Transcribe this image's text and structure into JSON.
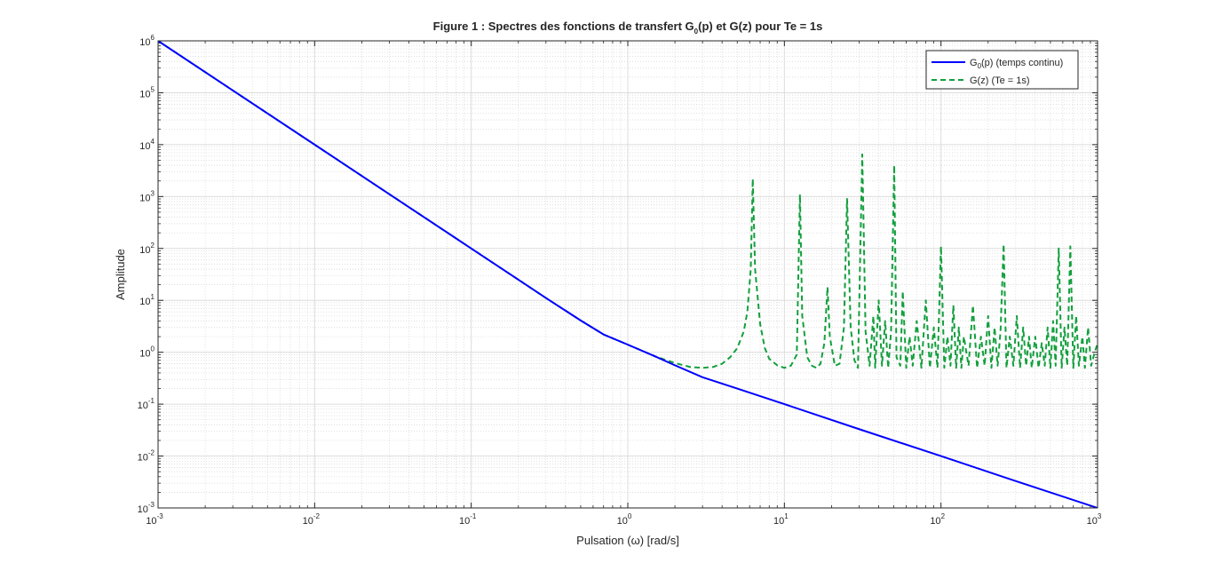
{
  "chart_data": {
    "type": "line",
    "title": "Figure 1 : Spectres des fonctions de transfert G",
    "title_sub": "0",
    "title_rest": "(p) et G(z) pour Te = 1s",
    "xlabel": "Pulsation (ω) [rad/s]",
    "ylabel": "Amplitude",
    "xscale": "log",
    "yscale": "log",
    "xlim": [
      0.001,
      1000
    ],
    "ylim": [
      0.001,
      1000000
    ],
    "grid": true,
    "minor_grid": true,
    "legend_position": "top-right",
    "x_tick_labels": [
      {
        "base": "10",
        "exp": "-3"
      },
      {
        "base": "10",
        "exp": "-2"
      },
      {
        "base": "10",
        "exp": "-1"
      },
      {
        "base": "10",
        "exp": "0"
      },
      {
        "base": "10",
        "exp": "1"
      },
      {
        "base": "10",
        "exp": "2"
      },
      {
        "base": "10",
        "exp": "3"
      }
    ],
    "y_tick_labels": [
      {
        "base": "10",
        "exp": "6"
      },
      {
        "base": "10",
        "exp": "5"
      },
      {
        "base": "10",
        "exp": "4"
      },
      {
        "base": "10",
        "exp": "3"
      },
      {
        "base": "10",
        "exp": "2"
      },
      {
        "base": "10",
        "exp": "1"
      },
      {
        "base": "10",
        "exp": "0"
      },
      {
        "base": "10",
        "exp": "-1"
      },
      {
        "base": "10",
        "exp": "-2"
      },
      {
        "base": "10",
        "exp": "-3"
      }
    ],
    "series": [
      {
        "name_pre": "G",
        "name_sub": "0",
        "name_post": "(p) (temps continu)",
        "color": "#0000ff",
        "style": "solid",
        "x": [
          0.001,
          0.003,
          0.01,
          0.03,
          0.1,
          0.2,
          0.3,
          0.5,
          0.7,
          1,
          1.5,
          2,
          3,
          5,
          10,
          30,
          100,
          300,
          1000
        ],
        "y": [
          1000000,
          111000,
          10000,
          1110,
          100,
          25,
          11.1,
          4.1,
          2.2,
          1.4,
          0.83,
          0.56,
          0.33,
          0.2,
          0.1,
          0.033,
          0.01,
          0.0033,
          0.001
        ]
      },
      {
        "name": "G(z) (Te = 1s)",
        "color": "#139f3d",
        "style": "dashed",
        "x": [
          0.001,
          0.003,
          0.01,
          0.03,
          0.1,
          0.2,
          0.3,
          0.5,
          0.7,
          1,
          1.5,
          2,
          2.5,
          3,
          3.5,
          4,
          4.5,
          5,
          5.5,
          5.8,
          6.1,
          6.28,
          6.5,
          7,
          7.5,
          8,
          9,
          10,
          11,
          12,
          12.57,
          13,
          14,
          15,
          16,
          17,
          18,
          18.85,
          19.5,
          21,
          22.5,
          24,
          25.13,
          26.5,
          28,
          29.5,
          31.42,
          33,
          35,
          37,
          38,
          40,
          42,
          44,
          46,
          48,
          50.27,
          52,
          55,
          57,
          60,
          63,
          66,
          70,
          75,
          80,
          85,
          90,
          95,
          100,
          105,
          110,
          115,
          120,
          125,
          130,
          135,
          140,
          150,
          160,
          170,
          180,
          190,
          200,
          210,
          220,
          230,
          240,
          251.3,
          262,
          275,
          290,
          305,
          320,
          335,
          350,
          365,
          380,
          400,
          420,
          440,
          460,
          480,
          500,
          520,
          540,
          565,
          590,
          615,
          640,
          670,
          700,
          730,
          760,
          800,
          830,
          870,
          910,
          950,
          1000
        ],
        "y": [
          1000000,
          111000,
          10000,
          1110,
          100,
          25,
          11.1,
          4.1,
          2.2,
          1.4,
          0.83,
          0.62,
          0.52,
          0.5,
          0.52,
          0.6,
          0.8,
          1.2,
          2.5,
          6,
          40,
          2200,
          40,
          3.5,
          1.2,
          0.75,
          0.56,
          0.5,
          0.55,
          0.9,
          1100,
          5,
          0.8,
          0.55,
          0.5,
          0.6,
          1.5,
          18,
          2,
          0.55,
          0.6,
          3,
          900,
          3,
          0.7,
          0.5,
          6500,
          2.5,
          0.55,
          5,
          0.5,
          10,
          0.55,
          4,
          0.5,
          2.5,
          4000,
          0.8,
          0.55,
          15,
          0.5,
          2,
          0.55,
          4,
          0.5,
          10,
          0.5,
          3,
          0.5,
          110,
          0.5,
          2,
          0.55,
          8,
          0.5,
          3,
          0.5,
          2,
          0.55,
          8,
          0.5,
          2,
          0.55,
          5,
          0.5,
          3,
          0.55,
          2.5,
          120,
          0.5,
          2,
          0.55,
          5,
          0.5,
          3,
          0.55,
          2,
          0.5,
          2,
          0.5,
          1.5,
          0.55,
          3,
          0.5,
          4,
          0.55,
          100,
          0.5,
          3,
          0.55,
          110,
          0.5,
          5,
          0.55,
          2,
          0.5,
          3,
          0.55,
          0.9,
          1.5
        ]
      }
    ]
  }
}
